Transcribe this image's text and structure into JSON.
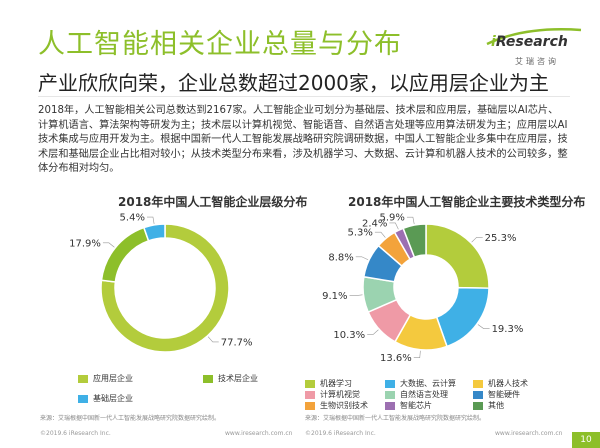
{
  "header": {
    "title": "人工智能相关企业总量与分布",
    "subtitle": "产业欣欣向荣，企业总数超过2000家，以应用层企业为主"
  },
  "logo": {
    "brand_i": "i",
    "brand_rest": "Research",
    "sub": "艾瑞咨询"
  },
  "body_text": "2018年，人工智能相关公司总数达到2167家。人工智能企业可划分为基础层、技术层和应用层，基础层以AI芯片、计算机语言、算法架构等研发为主；技术层以计算机视觉、智能语音、自然语言处理等应用算法研发为主；应用层以AI技术集成与应用开发为主。根据中国新一代人工智能发展战略研究院调研数据，中国人工智能企业多集中在应用层，技术层和基础层企业占比相对较小；从技术类型分布来看，涉及机器学习、大数据、云计算和机器人技术的公司较多，整体分布相对均匀。",
  "chart_data": [
    {
      "type": "pie",
      "title": "2018年中国人工智能企业层级分布",
      "categories": [
        "应用层企业",
        "技术层企业",
        "基础层企业"
      ],
      "values": [
        77.7,
        17.9,
        5.4
      ],
      "labels": [
        "77.7%",
        "17.9%",
        "5.4%"
      ],
      "colors": [
        "#b3cc3c",
        "#8dbf2a",
        "#3fb0e6"
      ],
      "legend_position": "bottom"
    },
    {
      "type": "pie",
      "title": "2018年中国人工智能企业主要技术类型分布",
      "categories": [
        "机器学习",
        "大数据、云计算",
        "机器人技术",
        "计算机视觉",
        "自然语言处理",
        "智能硬件",
        "生物识别技术",
        "智能芯片",
        "其他"
      ],
      "values": [
        25.3,
        19.3,
        13.6,
        10.3,
        9.1,
        8.8,
        5.3,
        2.4,
        5.9
      ],
      "labels": [
        "25.3%",
        "19.3%",
        "13.6%",
        "10.3%",
        "9.1%",
        "8.8%",
        "5.3%",
        "2.4%",
        "5.9%"
      ],
      "colors": [
        "#b3cc3c",
        "#3fb0e6",
        "#f4c93e",
        "#ef9aa6",
        "#9bd3b0",
        "#3588c8",
        "#f3a33b",
        "#9c6fb1",
        "#5a9a54"
      ],
      "legend_position": "bottom"
    }
  ],
  "notes": {
    "left": "来源：艾瑞根据中国新一代人工智能发展战略研究院数据研究绘制。",
    "right": "来源：艾瑞根据中国新一代人工智能发展战略研究院数据研究绘制。"
  },
  "footer": {
    "left_copyright": "©2019.6 iResearch Inc.",
    "left_url": "www.iresearch.com.cn",
    "right_copyright": "©2019.6 iResearch Inc.",
    "right_url": "www.iresearch.com.cn",
    "page": "10"
  }
}
